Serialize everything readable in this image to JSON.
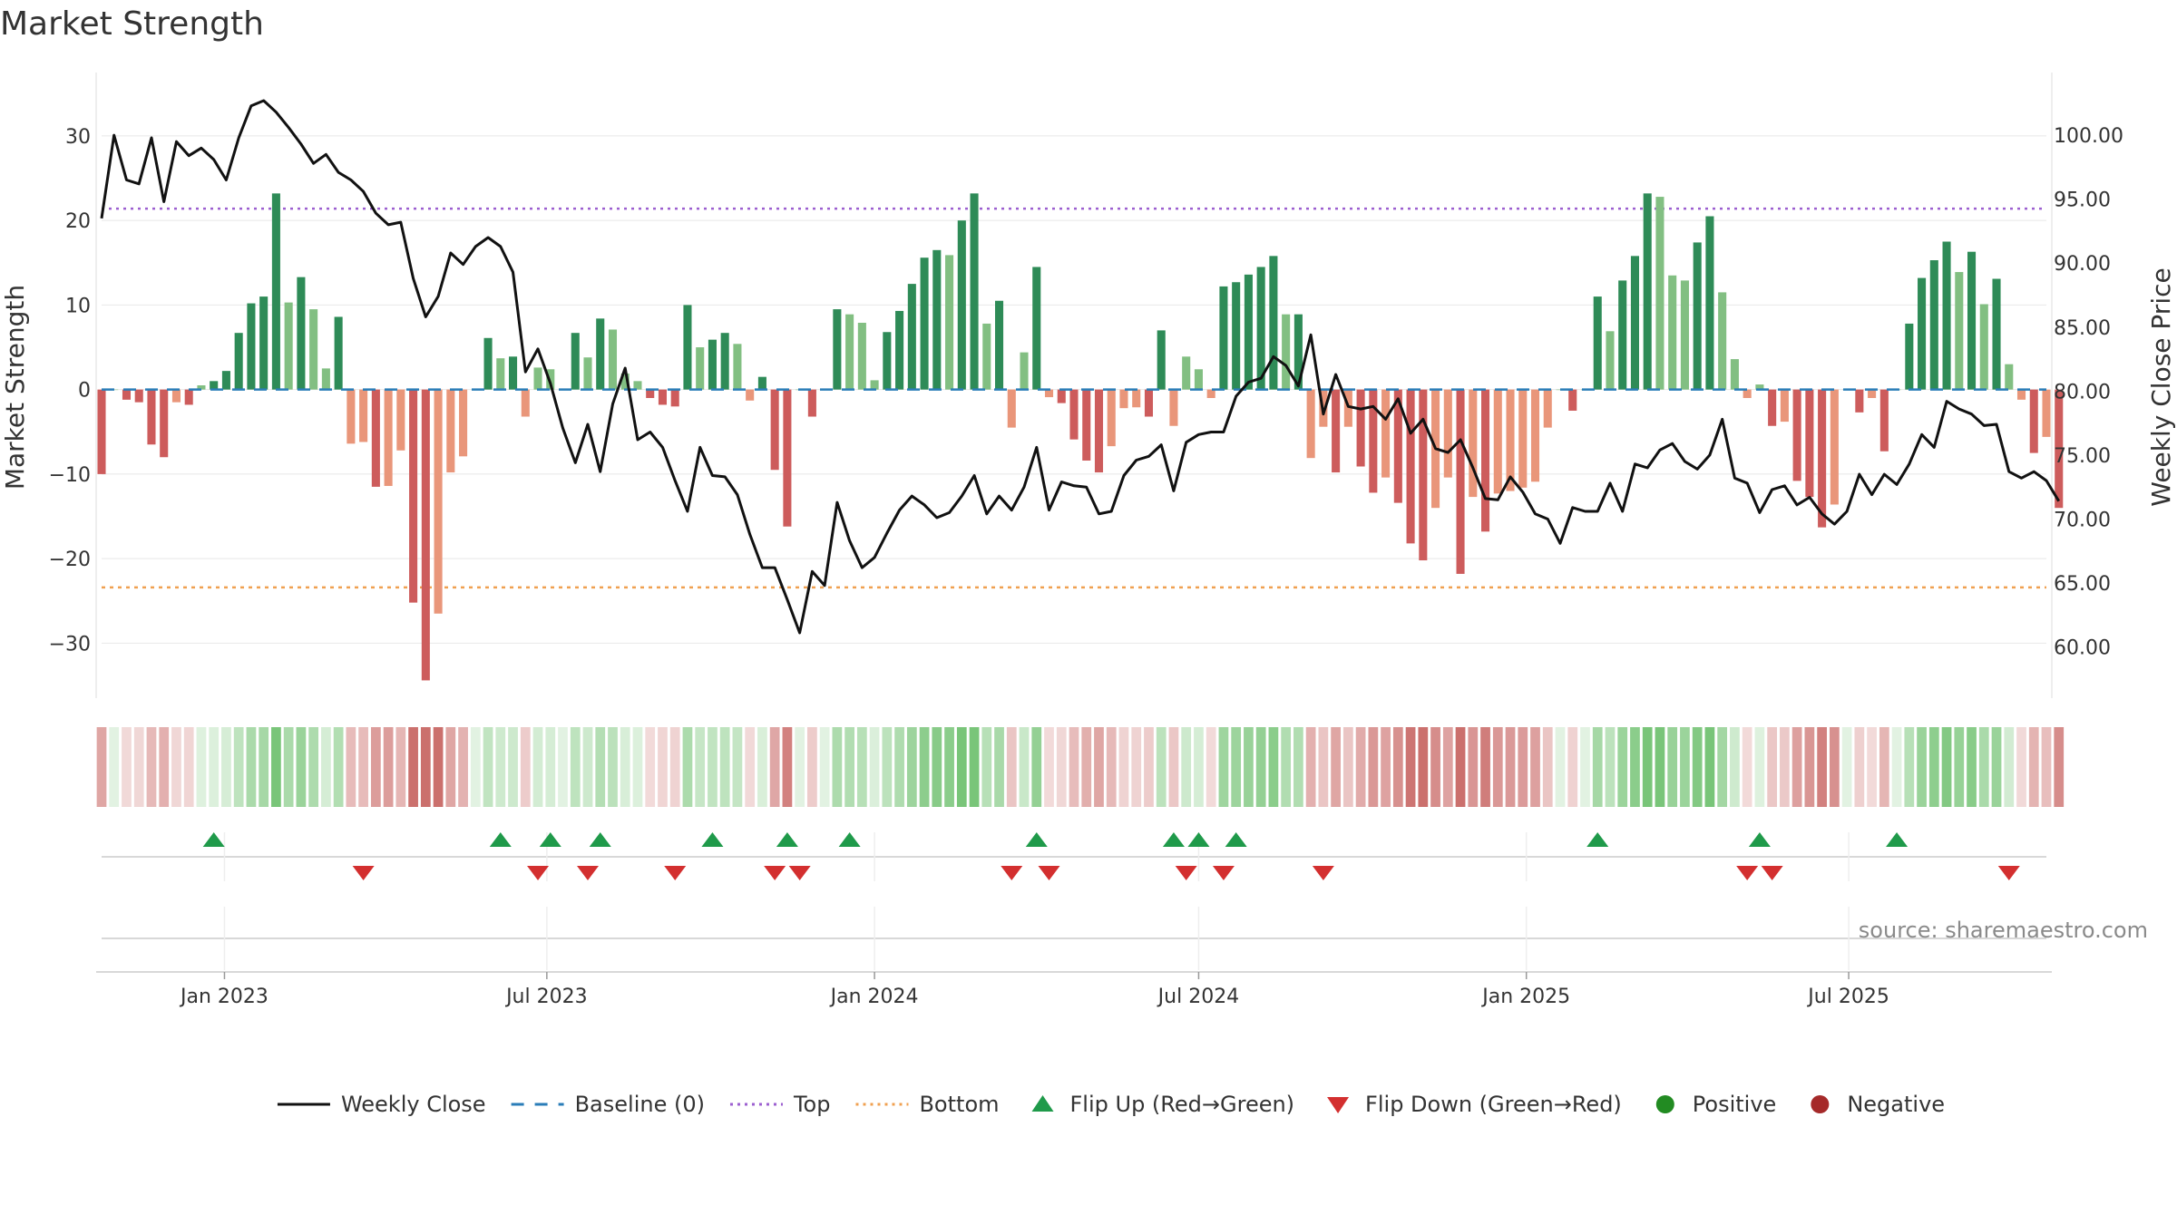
{
  "chart_data": {
    "type": "bar",
    "title": "Market Strength",
    "ylabel": "Market Strength",
    "y2label": "Weekly Close Price",
    "ylim": [
      -36.5,
      37.5
    ],
    "y2lim": [
      56.0,
      104.9
    ],
    "yticks": [
      -30,
      -20,
      -10,
      0,
      10,
      20,
      30
    ],
    "yticklabels": [
      "−30",
      "−20",
      "−10",
      "0",
      "10",
      "20",
      "30"
    ],
    "y2ticks": [
      60,
      65,
      70,
      75,
      80,
      85,
      90,
      95,
      100
    ],
    "y2ticklabels": [
      "60.00",
      "65.00",
      "70.00",
      "75.00",
      "80.00",
      "85.00",
      "90.00",
      "95.00",
      "100.00"
    ],
    "top_level": 21.4,
    "bottom_level": -23.4,
    "x_start": "2022-10-24",
    "week_days": 7,
    "x_end": "2025-10-20",
    "xticks": [
      "2023-01-01",
      "2023-07-01",
      "2024-01-01",
      "2024-07-01",
      "2025-01-01",
      "2025-07-01"
    ],
    "xticklabels": [
      "Jan 2023",
      "Jul 2023",
      "Jan 2024",
      "Jul 2024",
      "Jan 2025",
      "Jul 2025"
    ],
    "strength": [
      -10,
      0,
      -1.2,
      -1.5,
      -6.5,
      -8,
      -1.5,
      -1.8,
      0.5,
      1,
      2.2,
      6.7,
      10.2,
      11,
      23.2,
      10.3,
      13.3,
      9.5,
      2.5,
      8.6,
      -6.4,
      -6.2,
      -11.5,
      -11.4,
      -7.2,
      -25.2,
      -34.4,
      -26.5,
      -9.8,
      -7.9,
      0,
      6.1,
      3.7,
      3.9,
      -3.2,
      2.6,
      2.4,
      0,
      6.7,
      3.8,
      8.4,
      7.1,
      1.9,
      1,
      -1,
      -1.8,
      -2,
      10,
      5,
      5.9,
      6.7,
      5.4,
      -1.3,
      1.5,
      -9.5,
      -16.2,
      0,
      -3.2,
      0,
      9.5,
      8.9,
      7.9,
      1.1,
      6.8,
      9.3,
      12.5,
      15.6,
      16.5,
      15.9,
      20,
      23.2,
      7.8,
      10.5,
      -4.5,
      4.4,
      14.5,
      -0.9,
      -1.6,
      -5.9,
      -8.4,
      -9.8,
      -6.7,
      -2.2,
      -2.1,
      -3.2,
      7,
      -4.3,
      3.9,
      2.4,
      -1,
      12.2,
      12.7,
      13.6,
      14.5,
      15.8,
      8.9,
      8.9,
      -8.1,
      -4.4,
      -9.8,
      -4.4,
      -9.1,
      -12.2,
      -10.4,
      -13.4,
      -18.2,
      -20.2,
      -14,
      -10.4,
      -21.8,
      -12.7,
      -16.8,
      -12.3,
      -12,
      -11.6,
      -10.9,
      -4.5,
      0,
      -2.5,
      0,
      11,
      6.9,
      12.9,
      15.8,
      23.2,
      22.8,
      13.5,
      12.9,
      17.4,
      20.5,
      11.5,
      3.6,
      -1,
      0.6,
      -4.3,
      -3.8,
      -10.8,
      -12.7,
      -16.3,
      -13.6,
      0,
      -2.7,
      -1,
      -7.3,
      0,
      7.8,
      13.2,
      15.3,
      17.5,
      13.9,
      16.3,
      10.1,
      13.1,
      3,
      -1.2,
      -7.5,
      -5.6,
      -14
    ],
    "close": [
      93.5,
      100,
      96.5,
      96.2,
      99.8,
      94.8,
      99.5,
      98.4,
      99,
      98.1,
      96.5,
      99.8,
      102.3,
      102.7,
      101.8,
      100.6,
      99.3,
      97.8,
      98.5,
      97.1,
      96.5,
      95.6,
      93.9,
      93,
      93.2,
      88.8,
      85.8,
      87.4,
      90.8,
      89.9,
      91.3,
      92,
      91.3,
      89.3,
      81.5,
      83.3,
      80.6,
      77.1,
      74.4,
      77.4,
      73.7,
      79,
      81.8,
      76.2,
      76.8,
      75.6,
      73,
      70.6,
      75.6,
      73.4,
      73.3,
      71.9,
      68.8,
      66.2,
      66.2,
      63.7,
      61.1,
      65.9,
      64.8,
      71.3,
      68.3,
      66.2,
      67,
      68.9,
      70.7,
      71.8,
      71.1,
      70.1,
      70.5,
      71.8,
      73.4,
      70.4,
      71.8,
      70.7,
      72.5,
      75.6,
      70.7,
      72.9,
      72.6,
      72.5,
      70.4,
      70.6,
      73.4,
      74.6,
      74.9,
      75.8,
      72.2,
      76,
      76.6,
      76.8,
      76.8,
      79.6,
      80.7,
      81,
      82.7,
      82,
      80.4,
      84.4,
      78.2,
      81.3,
      78.8,
      78.6,
      78.8,
      77.8,
      79.4,
      76.7,
      77.8,
      75.5,
      75.2,
      76.2,
      74,
      71.6,
      71.5,
      73.3,
      72.1,
      70.4,
      70,
      68.1,
      70.9,
      70.6,
      70.6,
      72.8,
      70.6,
      74.3,
      74,
      75.4,
      75.9,
      74.5,
      73.9,
      75,
      77.8,
      73.2,
      72.8,
      70.5,
      72.3,
      72.6,
      71.1,
      71.7,
      70.4,
      69.6,
      70.6,
      73.5,
      71.9,
      73.5,
      72.7,
      74.3,
      76.6,
      75.6,
      79.2,
      78.6,
      78.2,
      77.3,
      77.4,
      73.7,
      73.2,
      73.7,
      73,
      71.4
    ],
    "flip_up": [
      9,
      32,
      36,
      40,
      49,
      55,
      60,
      75,
      86,
      88,
      91,
      120,
      133,
      144
    ],
    "flip_down": [
      21,
      35,
      39,
      46,
      54,
      56,
      73,
      76,
      87,
      90,
      98,
      132,
      134,
      153
    ],
    "legend": [
      {
        "name": "Weekly Close",
        "symbol": "line",
        "color": "#111111"
      },
      {
        "name": "Baseline (0)",
        "symbol": "dash",
        "color": "#2a7db8"
      },
      {
        "name": "Top",
        "symbol": "dot",
        "color": "#9c5fd0"
      },
      {
        "name": "Bottom",
        "symbol": "dot",
        "color": "#f0a050"
      },
      {
        "name": "Flip Up (Red→Green)",
        "symbol": "tri-up",
        "color": "#1f9a4a"
      },
      {
        "name": "Flip Down (Green→Red)",
        "symbol": "tri-down",
        "color": "#d32f2f"
      },
      {
        "name": "Positive",
        "symbol": "circle",
        "color": "#228b22"
      },
      {
        "name": "Negative",
        "symbol": "circle",
        "color": "#a52a2a"
      }
    ],
    "legend_position": "bottom-center",
    "grid": true
  },
  "source": "source: sharemaestro.com",
  "colors": {
    "pos_strong": "#2e8b57",
    "pos_weak": "#82bf82",
    "neg_strong": "#cd5c5c",
    "neg_weak": "#e9967a",
    "band_pos": "#5cb85c",
    "band_neg": "#c0504d",
    "top_line": "#9c5fd0",
    "bottom_line": "#f0a050",
    "baseline": "#2a7db8",
    "close_line": "#111111",
    "flip_up": "#1f9a4a",
    "flip_down": "#d32f2f"
  }
}
